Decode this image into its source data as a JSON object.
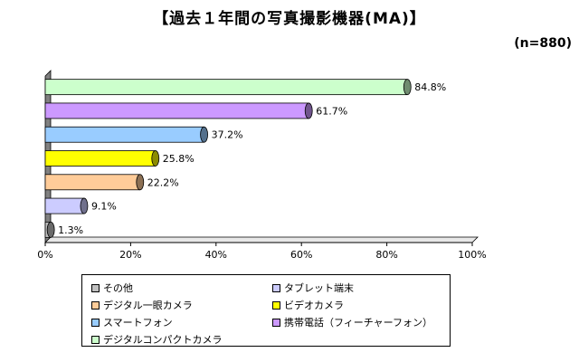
{
  "header": {
    "title": "【過去１年間の写真撮影機器(MA)】",
    "sample": "(n=880)"
  },
  "chart_data": {
    "type": "bar",
    "orientation": "horizontal",
    "title": "【過去１年間の写真撮影機器(MA)】",
    "xlabel": "",
    "ylabel": "",
    "xlim": [
      0,
      100
    ],
    "x_ticks": [
      "0%",
      "20%",
      "40%",
      "60%",
      "80%",
      "100%"
    ],
    "categories": [
      "デジタルコンパクトカメラ",
      "携帯電話（フィーチャーフォン）",
      "スマートフォン",
      "ビデオカメラ",
      "デジタル一眼カメラ",
      "タブレット端末",
      "その他"
    ],
    "values": [
      84.8,
      61.7,
      37.2,
      25.8,
      22.2,
      9.1,
      1.3
    ],
    "value_labels": [
      "84.8%",
      "61.7%",
      "37.2%",
      "25.8%",
      "22.2%",
      "9.1%",
      "1.3%"
    ],
    "colors": [
      "#ccffcc",
      "#cc99ff",
      "#99ccff",
      "#ffff00",
      "#ffcc99",
      "#ccccff",
      "#c0c0c0"
    ],
    "legend_position": "bottom",
    "legend": [
      {
        "label": "その他",
        "color": "#c0c0c0"
      },
      {
        "label": "タブレット端末",
        "color": "#ccccff"
      },
      {
        "label": "デジタル一眼カメラ",
        "color": "#ffcc99"
      },
      {
        "label": "ビデオカメラ",
        "color": "#ffff00"
      },
      {
        "label": "スマートフォン",
        "color": "#99ccff"
      },
      {
        "label": "携帯電話（フィーチャーフォン）",
        "color": "#cc99ff"
      },
      {
        "label": "デジタルコンパクトカメラ",
        "color": "#ccffcc"
      }
    ]
  }
}
